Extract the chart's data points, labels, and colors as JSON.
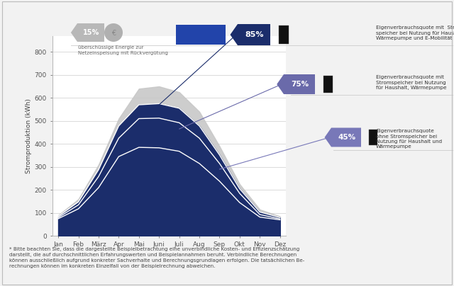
{
  "months": [
    "Jan",
    "Feb",
    "März",
    "Apr",
    "Mai",
    "Juni",
    "Juli",
    "Aug",
    "Sep",
    "Okt",
    "Nov",
    "Dez"
  ],
  "total_production": [
    90,
    160,
    310,
    510,
    640,
    650,
    625,
    540,
    390,
    225,
    115,
    85
  ],
  "with_storage_emobility": [
    85,
    148,
    288,
    478,
    570,
    575,
    555,
    478,
    352,
    205,
    104,
    80
  ],
  "with_storage_heat": [
    80,
    135,
    258,
    425,
    510,
    512,
    492,
    425,
    315,
    185,
    93,
    74
  ],
  "without_storage": [
    75,
    118,
    210,
    345,
    385,
    383,
    368,
    315,
    238,
    145,
    82,
    70
  ],
  "bg_color": "#f2f2f2",
  "chart_bg": "#ffffff",
  "footnote": "* Bitte beachten Sie, dass die dargestellte Beispielbetrachtung eine unverbindliche Kosten- und Effizienzschätzung\ndarstellt, die auf durchschnittlichen Erfahrungswerten und Beispielannahmen beruht. Verbindliche Berechnungen\nkönnen ausschließlich aufgrund konkreter Sachverhalte und Berechnungsgrundlagen erfolgen. Die tatsächlichen Be-\nrechnungen können im konkreten Einzelfall von der Beispielrechnung abweichen.",
  "ylabel": "Stromproduktion (kWh)",
  "yticks": [
    0,
    100,
    200,
    300,
    400,
    500,
    600,
    700,
    800
  ],
  "annotation_85_text": "Eigenverbrauchsquote mit  Strom-\nspeicher bei Nutzung für Haushalt,\nWärmepumpe und E-Mobilität",
  "annotation_75_text": "Eigenverbrauchsquote mit\nStromspeicher bei Nutzung\nfür Haushalt, Wärmepumpe",
  "annotation_45_text": "Eigenverbrauchsquote\nohne Stromspeicher bei\nNutzung für Haushalt und\nWärmepumpe",
  "netz_text": "überschüssige Energie zur\nNetzeinspeisung mit Rückvergütung",
  "color_gray": "#c8c8c8",
  "color_navy": "#1b2d6b",
  "color_mid_blue": "#2e4099",
  "color_light_purple": "#7070b0",
  "badge_85_color": "#1b2d6b",
  "badge_75_color": "#6a6aaa",
  "badge_45_color": "#7878b8",
  "badge_15_color": "#b8b8b8",
  "line_color_85": "#1b2d6b",
  "line_color_75": "#6a6aaa",
  "line_color_45": "#7878b8"
}
